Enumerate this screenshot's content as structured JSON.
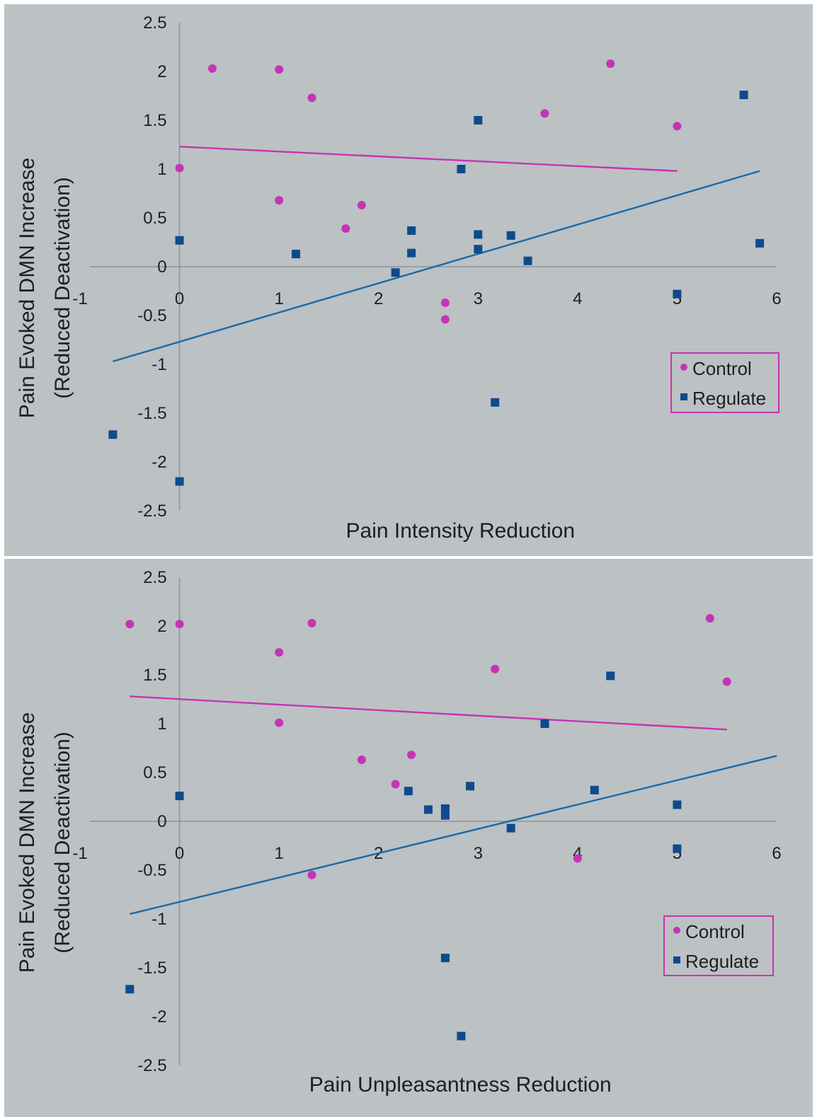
{
  "colors": {
    "control": "#c534b4",
    "regulate": "#0f4a8c",
    "regulate_trend": "#1a6aa6"
  },
  "chart_data": [
    {
      "type": "scatter",
      "title": "",
      "xlabel": "Pain Intensity Reduction",
      "ylabel": "Pain Evoked DMN Increase",
      "ylabel_sub": "(Reduced Deactivation)",
      "xlim": [
        -1,
        6
      ],
      "ylim": [
        -2.5,
        2.5
      ],
      "xticks": [
        "-1",
        "0",
        "1",
        "2",
        "3",
        "4",
        "5",
        "6"
      ],
      "yticks": [
        "2.5",
        "2",
        "1.5",
        "1",
        "0.5",
        "0",
        "-0.5",
        "-1",
        "-1.5",
        "-2",
        "-2.5"
      ],
      "legend": {
        "position": "right",
        "entries": [
          "Control",
          "Regulate"
        ]
      },
      "series": [
        {
          "name": "Control",
          "marker": "circle",
          "points": [
            [
              0.33,
              2.03
            ],
            [
              1,
              2.02
            ],
            [
              1.33,
              1.73
            ],
            [
              3.67,
              1.57
            ],
            [
              4.33,
              2.08
            ],
            [
              5,
              1.44
            ],
            [
              0,
              1.01
            ],
            [
              1,
              0.68
            ],
            [
              1.83,
              0.63
            ],
            [
              1.67,
              0.39
            ],
            [
              2.67,
              -0.37
            ],
            [
              2.67,
              -0.54
            ]
          ],
          "trend": [
            [
              0,
              1.23
            ],
            [
              5,
              0.98
            ]
          ]
        },
        {
          "name": "Regulate",
          "marker": "square",
          "points": [
            [
              -0.67,
              -1.72
            ],
            [
              0,
              0.27
            ],
            [
              0,
              -2.2
            ],
            [
              1.17,
              0.13
            ],
            [
              2.17,
              -0.06
            ],
            [
              2.33,
              0.37
            ],
            [
              2.33,
              0.14
            ],
            [
              2.83,
              1.0
            ],
            [
              3,
              1.5
            ],
            [
              3,
              0.33
            ],
            [
              3,
              0.18
            ],
            [
              3.17,
              -1.39
            ],
            [
              3.33,
              0.32
            ],
            [
              3.5,
              0.06
            ],
            [
              5,
              -0.28
            ],
            [
              5.67,
              1.76
            ],
            [
              5.83,
              0.24
            ]
          ],
          "trend": [
            [
              -0.67,
              -0.97
            ],
            [
              5.83,
              0.98
            ]
          ]
        }
      ]
    },
    {
      "type": "scatter",
      "title": "",
      "xlabel": "Pain Unpleasantness Reduction",
      "ylabel": "Pain Evoked DMN Increase",
      "ylabel_sub": "(Reduced Deactivation)",
      "xlim": [
        -1,
        6
      ],
      "ylim": [
        -2.5,
        2.5
      ],
      "xticks": [
        "-1",
        "0",
        "1",
        "2",
        "3",
        "4",
        "5",
        "6"
      ],
      "yticks": [
        "2.5",
        "2",
        "1.5",
        "1",
        "0.5",
        "0",
        "-0.5",
        "-1",
        "-1.5",
        "-2",
        "-2.5"
      ],
      "legend": {
        "position": "right",
        "entries": [
          "Control",
          "Regulate"
        ]
      },
      "series": [
        {
          "name": "Control",
          "marker": "circle",
          "points": [
            [
              -0.5,
              2.02
            ],
            [
              0,
              2.02
            ],
            [
              1.33,
              2.03
            ],
            [
              1,
              1.73
            ],
            [
              3.17,
              1.56
            ],
            [
              5.33,
              2.08
            ],
            [
              5.5,
              1.43
            ],
            [
              1,
              1.01
            ],
            [
              1.83,
              0.63
            ],
            [
              2.33,
              0.68
            ],
            [
              2.17,
              0.38
            ],
            [
              4,
              -0.38
            ],
            [
              1.33,
              -0.55
            ]
          ],
          "trend": [
            [
              -0.5,
              1.28
            ],
            [
              5.5,
              0.94
            ]
          ]
        },
        {
          "name": "Regulate",
          "marker": "square",
          "points": [
            [
              -0.5,
              -1.72
            ],
            [
              0,
              0.26
            ],
            [
              2.3,
              0.31
            ],
            [
              2.5,
              0.12
            ],
            [
              2.67,
              0.13
            ],
            [
              2.67,
              0.06
            ],
            [
              2.67,
              -1.4
            ],
            [
              2.83,
              -2.2
            ],
            [
              2.92,
              0.36
            ],
            [
              3.33,
              -0.07
            ],
            [
              3.67,
              1.0
            ],
            [
              4.17,
              0.32
            ],
            [
              4.33,
              1.49
            ],
            [
              5,
              0.17
            ],
            [
              5,
              -0.28
            ]
          ],
          "trend": [
            [
              -0.5,
              -0.95
            ],
            [
              6,
              0.67
            ]
          ]
        }
      ]
    }
  ]
}
